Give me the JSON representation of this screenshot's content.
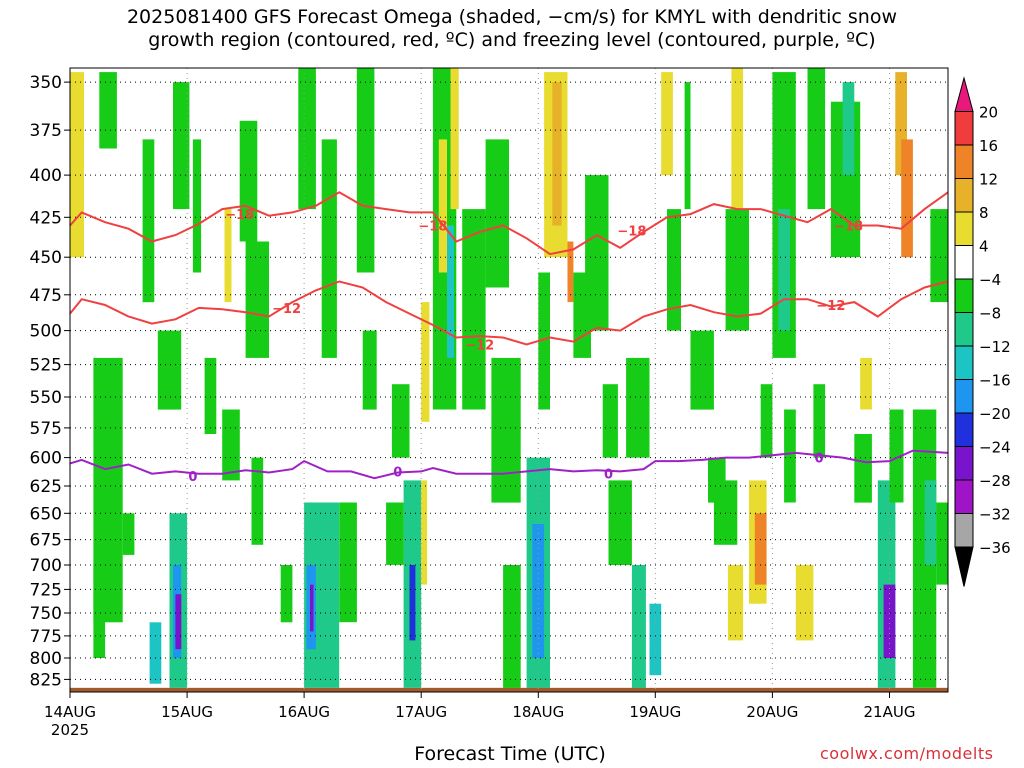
{
  "title": {
    "line1": "2025081400 GFS Forecast Omega (shaded, −cm/s) for KMYL with dendritic snow",
    "line2": "growth region (contoured, red, ºC) and freezing level (contoured, purple, ºC)"
  },
  "credit": "coolwx.com/modelts",
  "chart_data": {
    "type": "heatmap",
    "xlabel": "Forecast Time (UTC)",
    "ylabel": "",
    "x_ticks": [
      "14AUG",
      "15AUG",
      "16AUG",
      "17AUG",
      "18AUG",
      "19AUG",
      "20AUG",
      "21AUG"
    ],
    "x_year_label": "2025",
    "x_range_days": [
      0,
      7.5
    ],
    "y_ticks": [
      350,
      375,
      400,
      425,
      450,
      475,
      500,
      525,
      550,
      575,
      600,
      625,
      650,
      675,
      700,
      725,
      750,
      775,
      800,
      825
    ],
    "y_range_hpa": [
      840,
      343
    ],
    "grid": "dotted",
    "colorbar": {
      "labels": [
        "20",
        "16",
        "12",
        "8",
        "4",
        "−4",
        "−8",
        "−12",
        "−16",
        "−20",
        "−24",
        "−28",
        "−32",
        "−36"
      ],
      "bins": [
        {
          "range": ">20",
          "color": "#e8187c"
        },
        {
          "range": "16 to 20",
          "color": "#f03c3c"
        },
        {
          "range": "12 to 16",
          "color": "#ee8328"
        },
        {
          "range": "8 to 12",
          "color": "#e7b22a"
        },
        {
          "range": "4 to 8",
          "color": "#e8dc30"
        },
        {
          "range": "-4 to 4",
          "color": "#ffffff"
        },
        {
          "range": "-8 to -4",
          "color": "#16cc16"
        },
        {
          "range": "-12 to -8",
          "color": "#1ec98a"
        },
        {
          "range": "-16 to -12",
          "color": "#1cc4c4"
        },
        {
          "range": "-20 to -16",
          "color": "#1e96f0"
        },
        {
          "range": "-24 to -20",
          "color": "#2030dc"
        },
        {
          "range": "-28 to -24",
          "color": "#7a14cc"
        },
        {
          "range": "-32 to -28",
          "color": "#a014c8"
        },
        {
          "range": "-36 to -32",
          "color": "#a6a6a6"
        },
        {
          "range": "<-36",
          "color": "#000000"
        }
      ]
    },
    "ground_color": "#a05a2c",
    "contours": [
      {
        "label": "-18",
        "color": "#f04040",
        "label_positions": [
          [
            1.45,
            423
          ],
          [
            3.1,
            430
          ],
          [
            4.8,
            433
          ],
          [
            6.65,
            430
          ]
        ],
        "points": [
          [
            0,
            430
          ],
          [
            0.1,
            422
          ],
          [
            0.3,
            428
          ],
          [
            0.5,
            432
          ],
          [
            0.7,
            440
          ],
          [
            0.9,
            436
          ],
          [
            1.1,
            429
          ],
          [
            1.3,
            420
          ],
          [
            1.5,
            418
          ],
          [
            1.7,
            424
          ],
          [
            1.9,
            422
          ],
          [
            2.1,
            418
          ],
          [
            2.3,
            410
          ],
          [
            2.5,
            418
          ],
          [
            2.7,
            420
          ],
          [
            2.9,
            422
          ],
          [
            3.1,
            422
          ],
          [
            3.3,
            440
          ],
          [
            3.5,
            434
          ],
          [
            3.7,
            430
          ],
          [
            3.9,
            438
          ],
          [
            4.1,
            448
          ],
          [
            4.3,
            445
          ],
          [
            4.5,
            436
          ],
          [
            4.7,
            444
          ],
          [
            4.9,
            434
          ],
          [
            5.1,
            425
          ],
          [
            5.3,
            423
          ],
          [
            5.5,
            417
          ],
          [
            5.7,
            420
          ],
          [
            5.9,
            420
          ],
          [
            6.1,
            424
          ],
          [
            6.3,
            428
          ],
          [
            6.5,
            420
          ],
          [
            6.7,
            430
          ],
          [
            6.9,
            430
          ],
          [
            7.1,
            432
          ],
          [
            7.3,
            420
          ],
          [
            7.5,
            410
          ]
        ]
      },
      {
        "label": "-12",
        "color": "#f04040",
        "label_positions": [
          [
            1.85,
            484
          ],
          [
            3.5,
            510
          ],
          [
            6.5,
            482
          ]
        ],
        "points": [
          [
            0,
            488
          ],
          [
            0.1,
            478
          ],
          [
            0.3,
            482
          ],
          [
            0.5,
            490
          ],
          [
            0.7,
            495
          ],
          [
            0.9,
            492
          ],
          [
            1.1,
            484
          ],
          [
            1.3,
            485
          ],
          [
            1.5,
            487
          ],
          [
            1.7,
            490
          ],
          [
            1.9,
            480
          ],
          [
            2.1,
            472
          ],
          [
            2.3,
            466
          ],
          [
            2.5,
            470
          ],
          [
            2.7,
            480
          ],
          [
            2.9,
            488
          ],
          [
            3.1,
            496
          ],
          [
            3.3,
            505
          ],
          [
            3.5,
            504
          ],
          [
            3.7,
            505
          ],
          [
            3.9,
            510
          ],
          [
            4.1,
            505
          ],
          [
            4.3,
            508
          ],
          [
            4.5,
            498
          ],
          [
            4.7,
            500
          ],
          [
            4.9,
            490
          ],
          [
            5.1,
            485
          ],
          [
            5.3,
            482
          ],
          [
            5.5,
            487
          ],
          [
            5.7,
            490
          ],
          [
            5.9,
            488
          ],
          [
            6.1,
            478
          ],
          [
            6.3,
            478
          ],
          [
            6.5,
            483
          ],
          [
            6.7,
            480
          ],
          [
            6.9,
            490
          ],
          [
            7.1,
            478
          ],
          [
            7.3,
            470
          ],
          [
            7.5,
            466
          ]
        ]
      },
      {
        "label": "0",
        "color": "#a020c8",
        "label_positions": [
          [
            1.05,
            616
          ],
          [
            2.8,
            612
          ],
          [
            4.6,
            614
          ],
          [
            6.4,
            600
          ]
        ],
        "points": [
          [
            0,
            605
          ],
          [
            0.1,
            602
          ],
          [
            0.3,
            610
          ],
          [
            0.5,
            606
          ],
          [
            0.7,
            614
          ],
          [
            0.9,
            612
          ],
          [
            1.1,
            614
          ],
          [
            1.3,
            614
          ],
          [
            1.5,
            611
          ],
          [
            1.7,
            613
          ],
          [
            1.9,
            610
          ],
          [
            2.0,
            603
          ],
          [
            2.2,
            612
          ],
          [
            2.4,
            612
          ],
          [
            2.6,
            618
          ],
          [
            2.8,
            613
          ],
          [
            3.0,
            612
          ],
          [
            3.1,
            609
          ],
          [
            3.3,
            614
          ],
          [
            3.5,
            614
          ],
          [
            3.7,
            614
          ],
          [
            3.9,
            612
          ],
          [
            4.1,
            610
          ],
          [
            4.3,
            612
          ],
          [
            4.5,
            611
          ],
          [
            4.7,
            612
          ],
          [
            4.9,
            610
          ],
          [
            5.0,
            603
          ],
          [
            5.2,
            603
          ],
          [
            5.4,
            602
          ],
          [
            5.6,
            600
          ],
          [
            5.8,
            600
          ],
          [
            6.0,
            598
          ],
          [
            6.2,
            596
          ],
          [
            6.4,
            598
          ],
          [
            6.6,
            600
          ],
          [
            6.8,
            604
          ],
          [
            7.0,
            603
          ],
          [
            7.2,
            594
          ],
          [
            7.5,
            596
          ]
        ]
      }
    ],
    "cells": [
      [
        0.0,
        0.12,
        345,
        450,
        8
      ],
      [
        0.0,
        0.08,
        460,
        500,
        4
      ],
      [
        0.25,
        0.4,
        345,
        385,
        -6
      ],
      [
        0.2,
        0.45,
        520,
        760,
        -6
      ],
      [
        0.2,
        0.3,
        700,
        800,
        -6
      ],
      [
        0.45,
        0.55,
        650,
        690,
        -6
      ],
      [
        0.62,
        0.72,
        380,
        480,
        -6
      ],
      [
        0.68,
        0.78,
        760,
        830,
        -14
      ],
      [
        0.75,
        0.95,
        500,
        560,
        -6
      ],
      [
        0.85,
        1.0,
        650,
        835,
        -10
      ],
      [
        0.88,
        0.95,
        700,
        800,
        -18
      ],
      [
        0.9,
        0.95,
        730,
        790,
        -28
      ],
      [
        0.88,
        1.02,
        350,
        420,
        -6
      ],
      [
        1.05,
        1.12,
        380,
        460,
        -6
      ],
      [
        1.15,
        1.25,
        520,
        580,
        -6
      ],
      [
        1.3,
        1.45,
        560,
        620,
        -6
      ],
      [
        1.32,
        1.38,
        420,
        480,
        5
      ],
      [
        1.45,
        1.6,
        370,
        440,
        -6
      ],
      [
        1.5,
        1.7,
        440,
        520,
        -6
      ],
      [
        1.55,
        1.65,
        600,
        680,
        -6
      ],
      [
        1.8,
        1.9,
        700,
        760,
        -6
      ],
      [
        1.95,
        2.1,
        340,
        420,
        -6
      ],
      [
        2.0,
        2.3,
        640,
        835,
        -10
      ],
      [
        2.02,
        2.1,
        700,
        790,
        -20
      ],
      [
        2.05,
        2.08,
        720,
        770,
        -28
      ],
      [
        2.15,
        2.28,
        380,
        520,
        -6
      ],
      [
        2.3,
        2.45,
        640,
        760,
        -6
      ],
      [
        2.45,
        2.6,
        340,
        460,
        -6
      ],
      [
        2.5,
        2.62,
        500,
        560,
        -6
      ],
      [
        2.7,
        2.85,
        640,
        700,
        -6
      ],
      [
        2.75,
        2.9,
        540,
        600,
        -6
      ],
      [
        2.85,
        3.0,
        620,
        835,
        -10
      ],
      [
        2.9,
        2.95,
        700,
        780,
        -24
      ],
      [
        3.0,
        3.07,
        480,
        570,
        6
      ],
      [
        3.0,
        3.05,
        620,
        720,
        5
      ],
      [
        3.1,
        3.3,
        340,
        560,
        -6
      ],
      [
        3.15,
        3.22,
        380,
        460,
        6
      ],
      [
        3.22,
        3.28,
        430,
        520,
        -14
      ],
      [
        3.25,
        3.32,
        340,
        420,
        6
      ],
      [
        3.35,
        3.55,
        420,
        560,
        -6
      ],
      [
        3.55,
        3.75,
        380,
        470,
        -6
      ],
      [
        3.6,
        3.85,
        520,
        640,
        -6
      ],
      [
        3.7,
        3.85,
        700,
        835,
        -6
      ],
      [
        3.9,
        4.1,
        600,
        835,
        -10
      ],
      [
        3.95,
        4.05,
        660,
        800,
        -18
      ],
      [
        4.0,
        4.1,
        460,
        560,
        -6
      ],
      [
        4.05,
        4.25,
        345,
        450,
        6
      ],
      [
        4.12,
        4.2,
        350,
        430,
        10
      ],
      [
        4.25,
        4.3,
        440,
        480,
        14
      ],
      [
        4.3,
        4.45,
        460,
        520,
        -6
      ],
      [
        4.4,
        4.6,
        400,
        500,
        -6
      ],
      [
        4.55,
        4.68,
        540,
        600,
        -6
      ],
      [
        4.6,
        4.8,
        620,
        700,
        -6
      ],
      [
        4.75,
        4.95,
        520,
        600,
        -6
      ],
      [
        4.8,
        4.92,
        700,
        835,
        -10
      ],
      [
        4.95,
        5.05,
        740,
        820,
        -14
      ],
      [
        5.05,
        5.15,
        345,
        400,
        6
      ],
      [
        5.1,
        5.22,
        420,
        500,
        -6
      ],
      [
        5.25,
        5.3,
        350,
        420,
        -6
      ],
      [
        5.3,
        5.5,
        500,
        560,
        -6
      ],
      [
        5.45,
        5.6,
        600,
        640,
        -6
      ],
      [
        5.5,
        5.7,
        620,
        680,
        -6
      ],
      [
        5.6,
        5.8,
        420,
        500,
        -6
      ],
      [
        5.62,
        5.75,
        700,
        780,
        6
      ],
      [
        5.65,
        5.75,
        340,
        420,
        6
      ],
      [
        5.8,
        5.95,
        620,
        740,
        8
      ],
      [
        5.85,
        5.95,
        650,
        720,
        14
      ],
      [
        5.9,
        6.0,
        540,
        600,
        -6
      ],
      [
        6.0,
        6.2,
        345,
        520,
        -6
      ],
      [
        6.05,
        6.15,
        420,
        500,
        -12
      ],
      [
        6.1,
        6.2,
        560,
        640,
        -6
      ],
      [
        6.2,
        6.35,
        700,
        780,
        6
      ],
      [
        6.3,
        6.45,
        340,
        420,
        -6
      ],
      [
        6.35,
        6.45,
        540,
        600,
        -6
      ],
      [
        6.5,
        6.75,
        360,
        450,
        -6
      ],
      [
        6.6,
        6.7,
        350,
        400,
        -12
      ],
      [
        6.7,
        6.85,
        580,
        640,
        -6
      ],
      [
        6.75,
        6.85,
        520,
        560,
        6
      ],
      [
        6.9,
        7.05,
        620,
        835,
        -10
      ],
      [
        6.95,
        7.05,
        720,
        800,
        -28
      ],
      [
        7.0,
        7.12,
        560,
        640,
        -6
      ],
      [
        7.05,
        7.15,
        345,
        400,
        10
      ],
      [
        7.1,
        7.2,
        380,
        450,
        14
      ],
      [
        7.2,
        7.4,
        560,
        835,
        -6
      ],
      [
        7.3,
        7.4,
        620,
        700,
        -10
      ],
      [
        7.35,
        7.5,
        420,
        480,
        -6
      ],
      [
        7.4,
        7.5,
        640,
        720,
        -6
      ]
    ]
  }
}
